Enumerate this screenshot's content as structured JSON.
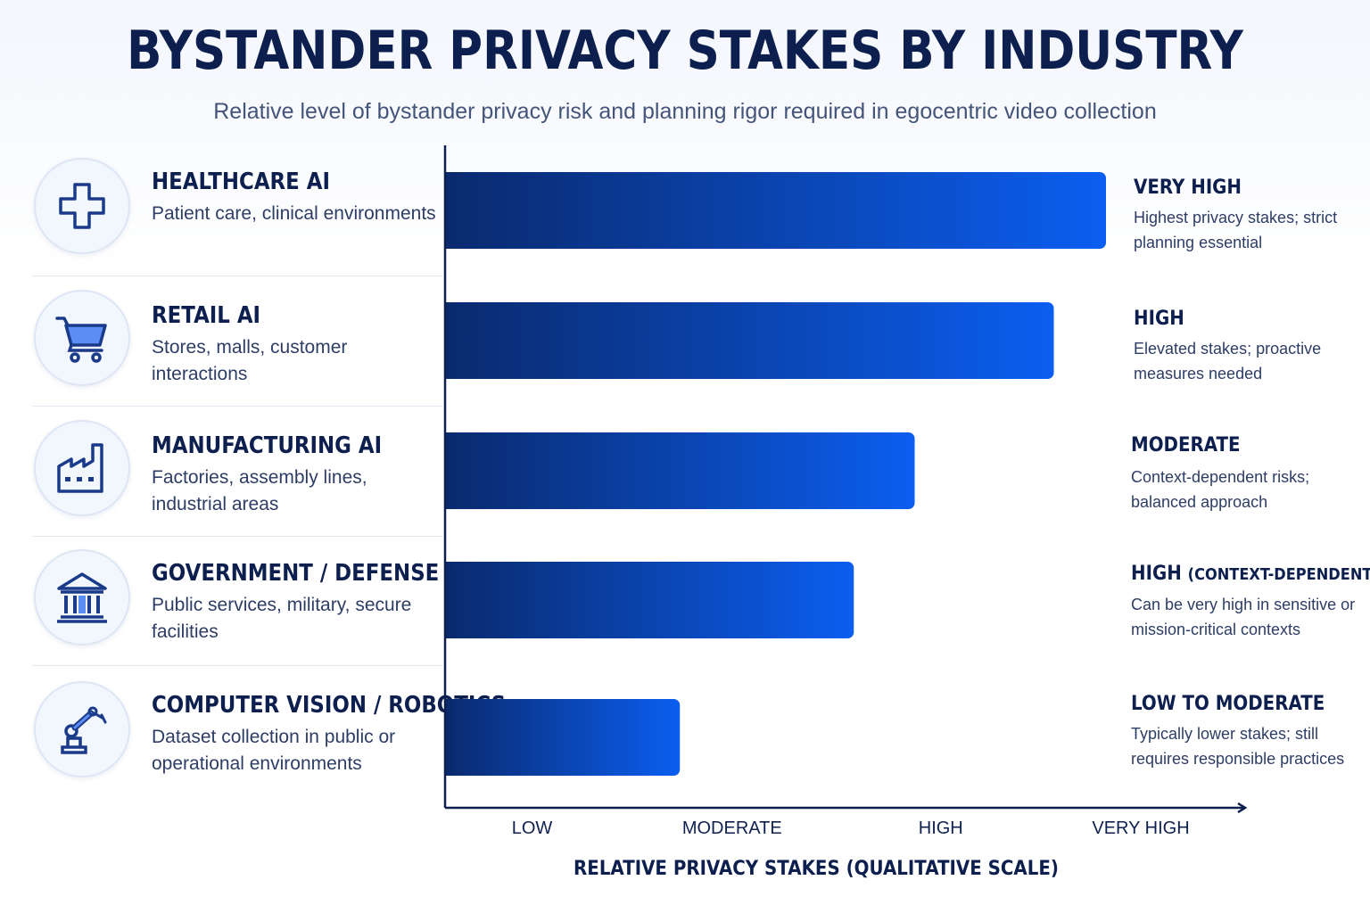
{
  "title": "BYSTANDER PRIVACY STAKES BY INDUSTRY",
  "subtitle": "Relative level of bystander privacy risk and planning rigor required in egocentric video collection",
  "industries": [
    {
      "name": "HEALTHCARE AI",
      "desc": "Patient care, clinical environments",
      "icon": "medical-cross-icon"
    },
    {
      "name": "RETAIL AI",
      "desc": "Stores, malls, customer interactions",
      "icon": "shopping-cart-icon"
    },
    {
      "name": "MANUFACTURING AI",
      "desc": "Factories, assembly lines, industrial areas",
      "icon": "factory-icon"
    },
    {
      "name": "GOVERNMENT / DEFENSE",
      "desc": "Public services, military, secure facilities",
      "icon": "government-building-icon"
    },
    {
      "name": "COMPUTER VISION / ROBOTICS",
      "desc": "Dataset collection in public or operational environments",
      "icon": "robot-arm-icon"
    }
  ],
  "levels": [
    {
      "title": "VERY HIGH",
      "title_small": "",
      "desc": "Highest privacy stakes; strict planning essential"
    },
    {
      "title": "HIGH",
      "title_small": "",
      "desc": "Elevated stakes; proactive measures needed"
    },
    {
      "title": "MODERATE",
      "title_small": "",
      "desc": "Context-dependent risks; balanced approach"
    },
    {
      "title": "HIGH",
      "title_small": "(CONTEXT-DEPENDENT)",
      "desc": "Can be very high in sensitive or mission-critical contexts"
    },
    {
      "title": "LOW TO MODERATE",
      "title_small": "",
      "desc": "Typically lower stakes; still requires responsible practices"
    }
  ],
  "chart_data": {
    "type": "bar",
    "orientation": "horizontal",
    "categories": [
      "HEALTHCARE AI",
      "RETAIL AI",
      "MANUFACTURING AI",
      "GOVERNMENT / DEFENSE",
      "COMPUTER VISION / ROBOTICS"
    ],
    "values": [
      3.8,
      3.5,
      2.7,
      2.35,
      1.35
    ],
    "xlabel": "RELATIVE PRIVACY STAKES (QUALITATIVE SCALE)",
    "ticks": [
      {
        "label": "LOW",
        "value": 0.5
      },
      {
        "label": "MODERATE",
        "value": 1.65
      },
      {
        "label": "HIGH",
        "value": 2.85
      },
      {
        "label": "VERY HIGH",
        "value": 4.0
      }
    ],
    "xlim": [
      0,
      4.6
    ],
    "bar_color_start": "#0a2a6e",
    "bar_color_end": "#0b5ef0",
    "axis_color": "#0d1f4e",
    "grid": false
  }
}
